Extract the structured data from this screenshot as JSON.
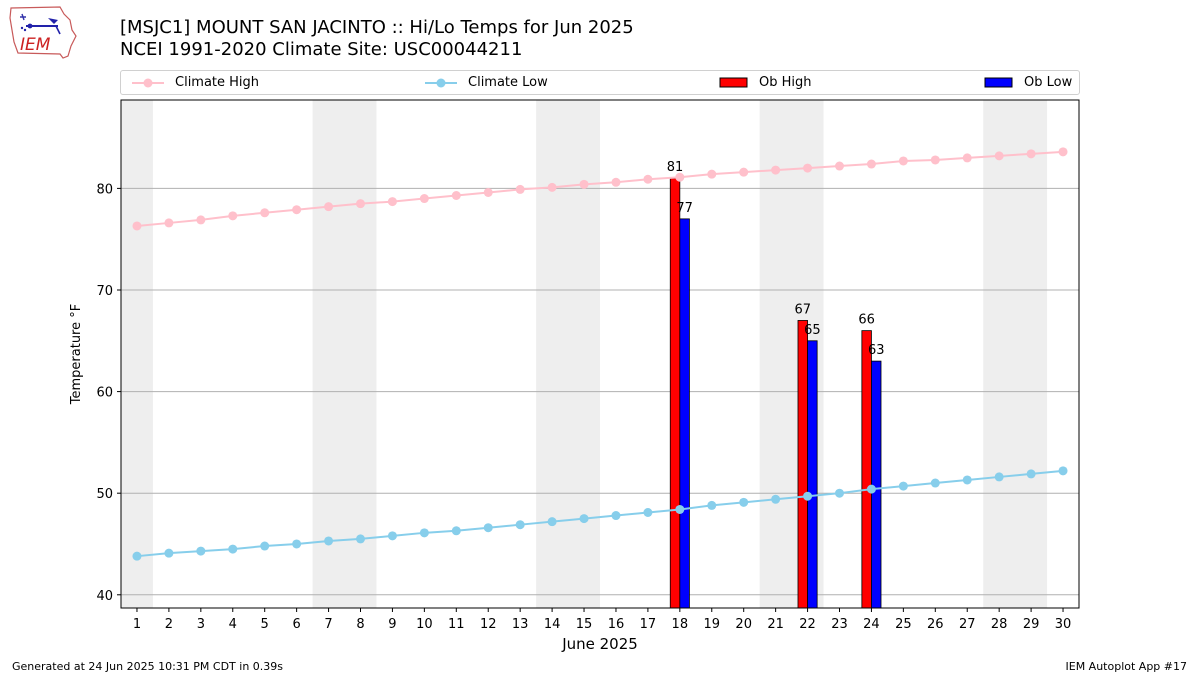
{
  "header": {
    "title_line1": "[MSJC1] MOUNT SAN JACINTO :: Hi/Lo Temps for Jun 2025",
    "title_line2": "NCEI 1991-2020 Climate Site: USC00044211"
  },
  "logo": {
    "text": "IEM"
  },
  "legend": {
    "climate_high": "Climate High",
    "climate_low": "Climate Low",
    "ob_high": "Ob High",
    "ob_low": "Ob Low"
  },
  "footer": {
    "left": "Generated at 24 Jun 2025 10:31 PM CDT in 0.39s",
    "right": "IEM Autoplot App #17"
  },
  "colors": {
    "climate_high": "#ffc0cb",
    "climate_low": "#87ceeb",
    "ob_high": "#ff0000",
    "ob_low": "#0000ff",
    "weekend_band": "#eeeeee",
    "grid": "#b0b0b0"
  },
  "chart_data": {
    "type": "bar",
    "xlabel": "June 2025",
    "ylabel": "Temperature °F",
    "xlim": [
      0.5,
      30.5
    ],
    "ylim": [
      38.7,
      88.7
    ],
    "x_ticks": [
      1,
      2,
      3,
      4,
      5,
      6,
      7,
      8,
      9,
      10,
      11,
      12,
      13,
      14,
      15,
      16,
      17,
      18,
      19,
      20,
      21,
      22,
      23,
      24,
      25,
      26,
      27,
      28,
      29,
      30
    ],
    "y_ticks": [
      40,
      50,
      60,
      70,
      80
    ],
    "grid": "horizontal",
    "legend_position": "top",
    "weekend_bands": [
      [
        0.5,
        1.5
      ],
      [
        6.5,
        8.5
      ],
      [
        13.5,
        15.5
      ],
      [
        20.5,
        22.5
      ],
      [
        27.5,
        29.5
      ]
    ],
    "climate_high": {
      "name": "Climate High",
      "x": [
        1,
        2,
        3,
        4,
        5,
        6,
        7,
        8,
        9,
        10,
        11,
        12,
        13,
        14,
        15,
        16,
        17,
        18,
        19,
        20,
        21,
        22,
        23,
        24,
        25,
        26,
        27,
        28,
        29,
        30
      ],
      "values": [
        76.3,
        76.6,
        76.9,
        77.3,
        77.6,
        77.9,
        78.2,
        78.5,
        78.7,
        79.0,
        79.3,
        79.6,
        79.9,
        80.1,
        80.4,
        80.6,
        80.9,
        81.1,
        81.4,
        81.6,
        81.8,
        82.0,
        82.2,
        82.4,
        82.7,
        82.8,
        83.0,
        83.2,
        83.4,
        83.6
      ]
    },
    "climate_low": {
      "name": "Climate Low",
      "x": [
        1,
        2,
        3,
        4,
        5,
        6,
        7,
        8,
        9,
        10,
        11,
        12,
        13,
        14,
        15,
        16,
        17,
        18,
        19,
        20,
        21,
        22,
        23,
        24,
        25,
        26,
        27,
        28,
        29,
        30
      ],
      "values": [
        43.8,
        44.1,
        44.3,
        44.5,
        44.8,
        45.0,
        45.3,
        45.5,
        45.8,
        46.1,
        46.3,
        46.6,
        46.9,
        47.2,
        47.5,
        47.8,
        48.1,
        48.4,
        48.8,
        49.1,
        49.4,
        49.7,
        50.0,
        50.4,
        50.7,
        51.0,
        51.3,
        51.6,
        51.9,
        52.2
      ]
    },
    "ob_high": {
      "name": "Ob High",
      "x": [
        18,
        22,
        24
      ],
      "values": [
        81,
        67,
        66
      ],
      "labels": [
        "81",
        "67",
        "66"
      ]
    },
    "ob_low": {
      "name": "Ob Low",
      "x": [
        18,
        22,
        24
      ],
      "values": [
        77,
        65,
        63
      ],
      "labels": [
        "77",
        "65",
        "63"
      ]
    }
  }
}
